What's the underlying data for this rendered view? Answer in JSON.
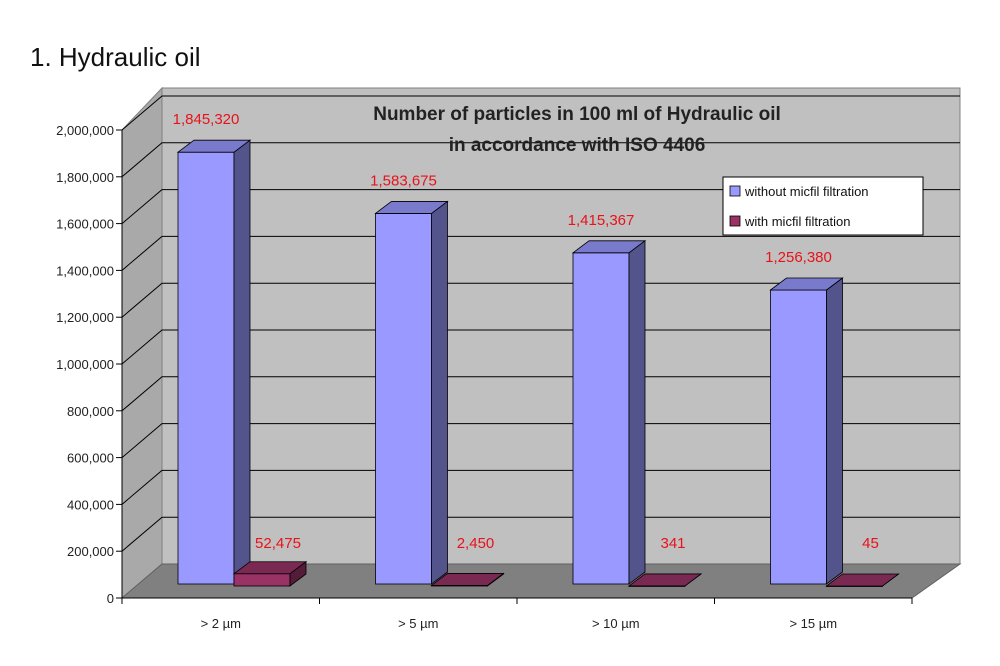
{
  "page": {
    "heading": "1. Hydraulic oil"
  },
  "chart_data": {
    "type": "bar",
    "title_lines": [
      "Number of particles in 100 ml of Hydraulic oil",
      "in accordance with ISO 4406"
    ],
    "categories": [
      "> 2 µm",
      "> 5 µm",
      "> 10 µm",
      "> 15 µm"
    ],
    "series": [
      {
        "name": "without micfil filtration",
        "values": [
          1845320,
          1583675,
          1415367,
          1256380
        ],
        "labels": [
          "1,845,320",
          "1,583,675",
          "1,415,367",
          "1,256,380"
        ],
        "color": "#9999ff"
      },
      {
        "name": "with micfil filtration",
        "values": [
          52475,
          2450,
          341,
          45
        ],
        "labels": [
          "52,475",
          "2,450",
          "341",
          "45"
        ],
        "color": "#993366"
      }
    ],
    "yticks": [
      "0",
      "200,000",
      "400,000",
      "600,000",
      "800,000",
      "1,000,000",
      "1,200,000",
      "1,400,000",
      "1,600,000",
      "1,800,000",
      "2,000,000"
    ],
    "ylim": [
      0,
      2000000
    ],
    "grid": true,
    "legend_position": "top-right",
    "colors": {
      "wall": "#c0c0c0",
      "floor": "#808080",
      "label": "#e8121a"
    }
  }
}
